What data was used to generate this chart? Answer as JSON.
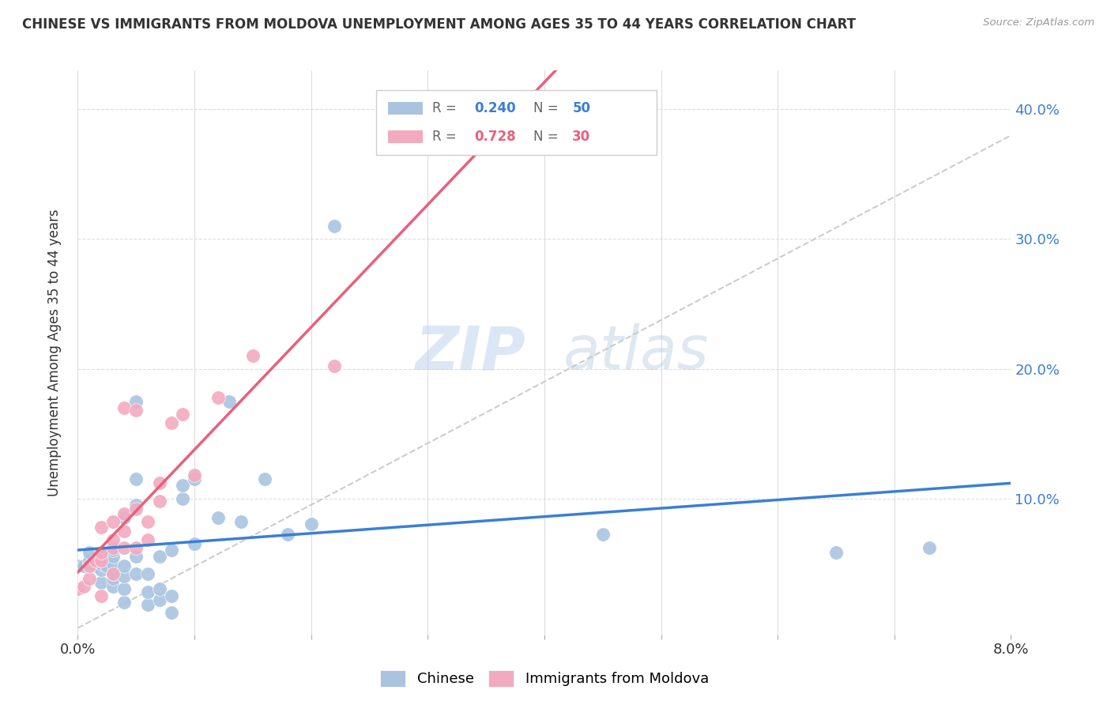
{
  "title": "CHINESE VS IMMIGRANTS FROM MOLDOVA UNEMPLOYMENT AMONG AGES 35 TO 44 YEARS CORRELATION CHART",
  "source": "Source: ZipAtlas.com",
  "ylabel": "Unemployment Among Ages 35 to 44 years",
  "xlim": [
    0.0,
    0.08
  ],
  "ylim": [
    -0.005,
    0.43
  ],
  "chinese_color": "#aac4e0",
  "moldova_color": "#f2aabf",
  "chinese_line_color": "#3a7fd4",
  "moldova_line_color": "#e8607a",
  "diagonal_color": "#cccccc",
  "R_chinese": 0.24,
  "N_chinese": 50,
  "R_moldova": 0.728,
  "N_moldova": 30,
  "watermark": "ZIPatlas",
  "legend_labels": [
    "Chinese",
    "Immigrants from Moldova"
  ],
  "chinese_x": [
    0.0,
    0.0005,
    0.001,
    0.001,
    0.001,
    0.0015,
    0.002,
    0.002,
    0.002,
    0.002,
    0.0025,
    0.003,
    0.003,
    0.003,
    0.003,
    0.003,
    0.003,
    0.004,
    0.004,
    0.004,
    0.004,
    0.004,
    0.005,
    0.005,
    0.005,
    0.005,
    0.005,
    0.006,
    0.006,
    0.006,
    0.007,
    0.007,
    0.007,
    0.008,
    0.008,
    0.008,
    0.009,
    0.009,
    0.01,
    0.01,
    0.012,
    0.013,
    0.014,
    0.016,
    0.018,
    0.02,
    0.022,
    0.045,
    0.065,
    0.073
  ],
  "chinese_y": [
    0.048,
    0.048,
    0.05,
    0.052,
    0.058,
    0.048,
    0.035,
    0.045,
    0.05,
    0.058,
    0.048,
    0.032,
    0.038,
    0.042,
    0.05,
    0.055,
    0.06,
    0.02,
    0.03,
    0.04,
    0.048,
    0.085,
    0.042,
    0.055,
    0.095,
    0.115,
    0.175,
    0.018,
    0.028,
    0.042,
    0.022,
    0.03,
    0.055,
    0.012,
    0.025,
    0.06,
    0.1,
    0.11,
    0.065,
    0.115,
    0.085,
    0.175,
    0.082,
    0.115,
    0.072,
    0.08,
    0.31,
    0.072,
    0.058,
    0.062
  ],
  "moldova_x": [
    0.0,
    0.0005,
    0.001,
    0.001,
    0.0015,
    0.002,
    0.002,
    0.002,
    0.002,
    0.003,
    0.003,
    0.003,
    0.003,
    0.004,
    0.004,
    0.004,
    0.004,
    0.005,
    0.005,
    0.005,
    0.006,
    0.006,
    0.007,
    0.007,
    0.008,
    0.009,
    0.01,
    0.012,
    0.015,
    0.022
  ],
  "moldova_y": [
    0.03,
    0.032,
    0.038,
    0.048,
    0.052,
    0.025,
    0.052,
    0.058,
    0.078,
    0.042,
    0.062,
    0.068,
    0.082,
    0.062,
    0.075,
    0.088,
    0.17,
    0.062,
    0.092,
    0.168,
    0.068,
    0.082,
    0.098,
    0.112,
    0.158,
    0.165,
    0.118,
    0.178,
    0.21,
    0.202
  ]
}
